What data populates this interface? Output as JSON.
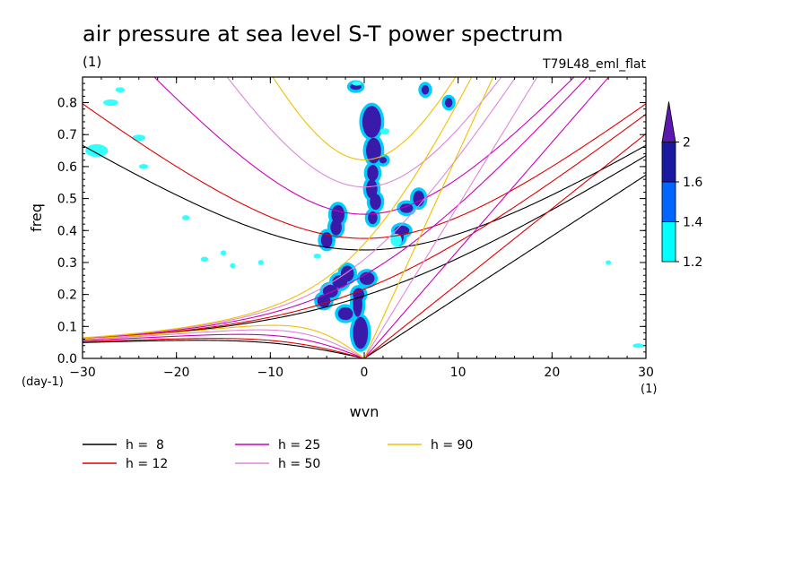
{
  "chart_data": {
    "type": "line",
    "title": "air pressure at sea level S-T power spectrum",
    "subtitle_left": "(1)",
    "subtitle_right": "T79L48_eml_flat",
    "xlabel": "wvn",
    "ylabel": "freq",
    "x_unit": "(1)",
    "y_unit": "(day-1)",
    "xlim": [
      -30,
      30
    ],
    "ylim": [
      0,
      0.88
    ],
    "x_ticks": [
      -30,
      -20,
      -10,
      0,
      10,
      20,
      30
    ],
    "x_tick_labels": [
      "−30",
      "−20",
      "−10",
      "0",
      "10",
      "20",
      "30"
    ],
    "y_ticks": [
      0.0,
      0.1,
      0.2,
      0.3,
      0.4,
      0.5,
      0.6,
      0.7,
      0.8
    ],
    "y_tick_labels": [
      "0.0",
      "0.1",
      "0.2",
      "0.3",
      "0.4",
      "0.5",
      "0.6",
      "0.7",
      "0.8"
    ],
    "colorbar": {
      "levels": [
        1.2,
        1.4,
        1.6,
        2
      ],
      "level_labels": [
        "1.2",
        "1.4",
        "1.6",
        "2"
      ],
      "colors": [
        "#00ffff",
        "#0066ff",
        "#1a1aa0",
        "#5a1ab0"
      ]
    },
    "contour_color_fill": "#3a1aa8",
    "contour_color_edge": "#00ccff",
    "contour_color_low": "#33ffff",
    "series": [
      {
        "name": "h =  8",
        "h": 8,
        "color": "#000000"
      },
      {
        "name": "h = 12",
        "h": 12,
        "color": "#dd0000"
      },
      {
        "name": "h = 25",
        "h": 25,
        "color": "#cc00bb"
      },
      {
        "name": "h = 50",
        "h": 50,
        "color": "#dd88dd"
      },
      {
        "name": "h = 90",
        "h": 90,
        "color": "#f0c000"
      }
    ],
    "legend_placement": "bottom",
    "grid": false
  }
}
